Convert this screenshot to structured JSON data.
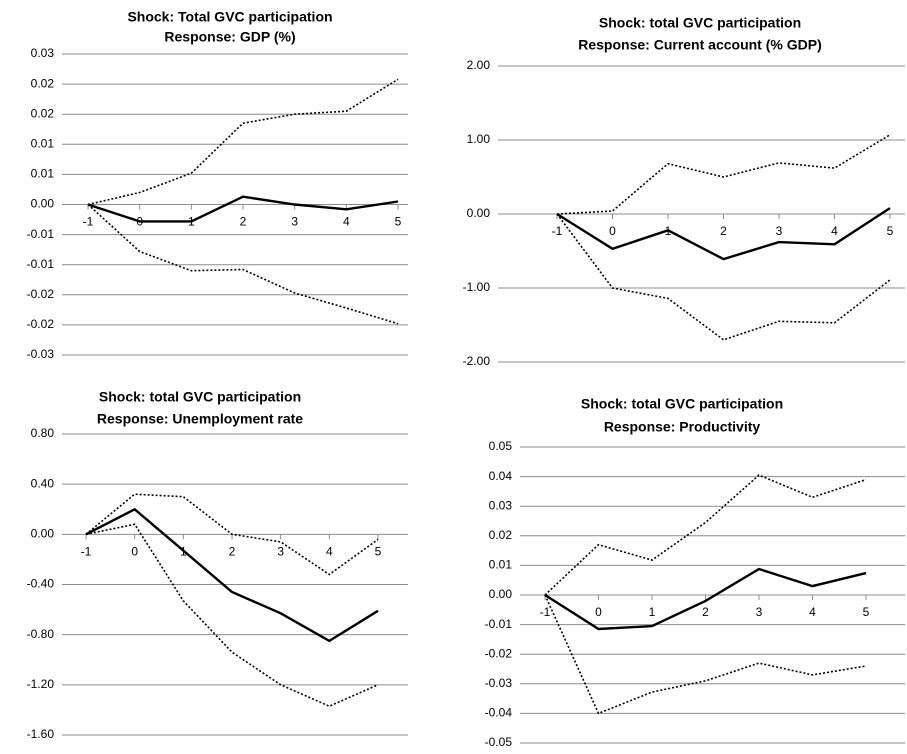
{
  "chart_data": [
    {
      "type": "line",
      "title": "Shock:  Total GVC participation",
      "subtitle": "Response: GDP (%)",
      "categories": [
        "-1",
        "0",
        "1",
        "2",
        "3",
        "4",
        "5"
      ],
      "ylim": [
        -0.025,
        0.025
      ],
      "yticks": [
        {
          "value": 0.025,
          "label": "0.03"
        },
        {
          "value": 0.02,
          "label": "0.02"
        },
        {
          "value": 0.015,
          "label": "0.02"
        },
        {
          "value": 0.01,
          "label": "0.01"
        },
        {
          "value": 0.005,
          "label": "0.01"
        },
        {
          "value": 0,
          "label": "0.00"
        },
        {
          "value": -0.005,
          "label": "-0.01"
        },
        {
          "value": -0.01,
          "label": "-0.01"
        },
        {
          "value": -0.015,
          "label": "-0.02"
        },
        {
          "value": -0.02,
          "label": "-0.02"
        },
        {
          "value": -0.025,
          "label": "-0.03"
        }
      ],
      "grid": true,
      "series": [
        {
          "color": "#000000",
          "style": "solid",
          "values": [
            0,
            -0.0028,
            -0.0028,
            0.0013,
            0,
            -0.0008,
            0.0005
          ]
        },
        {
          "color": "#000000",
          "style": "dotted",
          "values": [
            0,
            0.002,
            0.0052,
            0.0135,
            0.015,
            0.0155,
            0.0208
          ]
        },
        {
          "color": "#000000",
          "style": "dotted",
          "values": [
            0,
            -0.0078,
            -0.011,
            -0.0108,
            -0.0147,
            -0.0172,
            -0.0198
          ]
        }
      ]
    },
    {
      "type": "line",
      "title": "Shock: total GVC participation",
      "subtitle": "Response: Current account (% GDP)",
      "categories": [
        "-1",
        "0",
        "1",
        "2",
        "3",
        "4",
        "5"
      ],
      "ylim": [
        -2,
        2
      ],
      "yticks": [
        {
          "value": 2,
          "label": "2.00"
        },
        {
          "value": 1,
          "label": "1.00"
        },
        {
          "value": 0,
          "label": "0.00"
        },
        {
          "value": -1,
          "label": "-1.00"
        },
        {
          "value": -2,
          "label": "-2.00"
        }
      ],
      "grid": true,
      "series": [
        {
          "color": "#000000",
          "style": "solid",
          "values": [
            0,
            -0.47,
            -0.22,
            -0.61,
            -0.38,
            -0.41,
            0.08
          ]
        },
        {
          "color": "#000000",
          "style": "dotted",
          "values": [
            0,
            0.04,
            0.68,
            0.5,
            0.69,
            0.62,
            1.07
          ]
        },
        {
          "color": "#000000",
          "style": "dotted",
          "values": [
            0,
            -1.0,
            -1.14,
            -1.7,
            -1.45,
            -1.47,
            -0.89
          ]
        }
      ]
    },
    {
      "type": "line",
      "title": "Shock: total GVC participation",
      "subtitle": "Response: Unemployment rate",
      "categories": [
        "-1",
        "0",
        "1",
        "2",
        "3",
        "4",
        "5"
      ],
      "ylim": [
        -1.6,
        0.8
      ],
      "yticks": [
        {
          "value": 0.8,
          "label": "0.80"
        },
        {
          "value": 0.4,
          "label": "0.40"
        },
        {
          "value": 0,
          "label": "0.00"
        },
        {
          "value": -0.4,
          "label": "-0.40"
        },
        {
          "value": -0.8,
          "label": "-0.80"
        },
        {
          "value": -1.2,
          "label": "-1.20"
        },
        {
          "value": -1.6,
          "label": "-1.60"
        }
      ],
      "grid": true,
      "series": [
        {
          "color": "#000000",
          "style": "solid",
          "values": [
            0,
            0.2,
            -0.13,
            -0.46,
            -0.63,
            -0.85,
            -0.61
          ]
        },
        {
          "color": "#000000",
          "style": "dotted",
          "values": [
            0,
            0.32,
            0.3,
            0,
            -0.06,
            -0.32,
            -0.04
          ]
        },
        {
          "color": "#000000",
          "style": "dotted",
          "values": [
            0,
            0.08,
            -0.53,
            -0.94,
            -1.2,
            -1.37,
            -1.2
          ]
        }
      ]
    },
    {
      "type": "line",
      "title": "Shock: total GVC participation",
      "subtitle": "Response: Productivity",
      "categories": [
        "-1",
        "0",
        "1",
        "2",
        "3",
        "4",
        "5"
      ],
      "ylim": [
        -0.05,
        0.05
      ],
      "yticks": [
        0.05,
        0.04,
        0.03,
        0.02,
        0.01,
        {
          "value": 0,
          "label": "0.00"
        },
        -0.01,
        -0.02,
        -0.03,
        -0.04,
        -0.05
      ],
      "grid": true,
      "series": [
        {
          "color": "#000000",
          "style": "solid",
          "values": [
            0,
            -0.0115,
            -0.0105,
            -0.002,
            0.0088,
            0.003,
            0.0074
          ]
        },
        {
          "color": "#000000",
          "style": "dotted",
          "values": [
            0,
            0.017,
            0.0118,
            0.0245,
            0.0405,
            0.033,
            0.039
          ]
        },
        {
          "color": "#000000",
          "style": "dotted",
          "values": [
            0,
            -0.04,
            -0.0328,
            -0.029,
            -0.023,
            -0.027,
            -0.024
          ]
        }
      ]
    }
  ]
}
